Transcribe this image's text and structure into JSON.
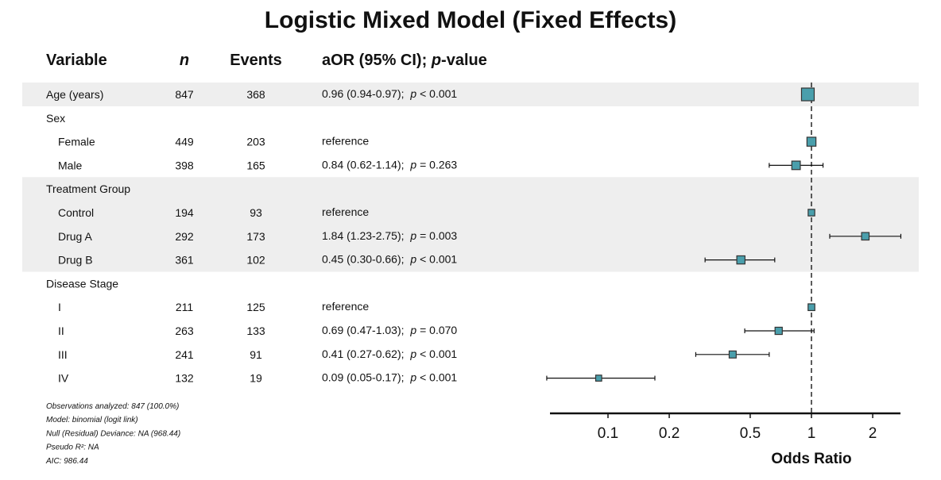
{
  "chart_data": {
    "type": "forest",
    "title": "Logistic Mixed Model (Fixed Effects)",
    "columns": {
      "variable": "Variable",
      "n": "n",
      "events": "Events",
      "estimate_prefix": "aOR (95% CI); ",
      "estimate_p": "p",
      "estimate_suffix": "-value"
    },
    "xlabel": "Odds Ratio",
    "xscale": "log",
    "xlim": [
      0.052,
      2.74
    ],
    "xticks": [
      "0.1",
      "0.2",
      "0.5",
      "1",
      "2"
    ],
    "reference_line": 1,
    "point_color": "#4a9fac",
    "band_color": "#eeeeee",
    "rows": [
      {
        "label": "Age (years)",
        "indent": false,
        "n": "847",
        "events": "368",
        "est": 0.96,
        "lo": 0.94,
        "hi": 0.97,
        "text": "0.96 (0.94-0.97);  ",
        "p": "p",
        "pval": " < 0.001",
        "shaded": true
      },
      {
        "label": "Sex",
        "indent": false,
        "header": true,
        "shaded": false
      },
      {
        "label": "Female",
        "indent": true,
        "n": "449",
        "events": "203",
        "est": 1,
        "text": "reference",
        "shaded": false
      },
      {
        "label": "Male",
        "indent": true,
        "n": "398",
        "events": "165",
        "est": 0.84,
        "lo": 0.62,
        "hi": 1.14,
        "text": "0.84 (0.62-1.14);  ",
        "p": "p",
        "pval": " = 0.263",
        "shaded": false
      },
      {
        "label": "Treatment Group",
        "indent": false,
        "header": true,
        "shaded": true
      },
      {
        "label": "Control",
        "indent": true,
        "n": "194",
        "events": "93",
        "est": 1,
        "text": "reference",
        "shaded": true
      },
      {
        "label": "Drug A",
        "indent": true,
        "n": "292",
        "events": "173",
        "est": 1.84,
        "lo": 1.23,
        "hi": 2.75,
        "text": "1.84 (1.23-2.75);  ",
        "p": "p",
        "pval": " = 0.003",
        "shaded": true
      },
      {
        "label": "Drug B",
        "indent": true,
        "n": "361",
        "events": "102",
        "est": 0.45,
        "lo": 0.3,
        "hi": 0.66,
        "text": "0.45 (0.30-0.66);  ",
        "p": "p",
        "pval": " < 0.001",
        "shaded": true
      },
      {
        "label": "Disease Stage",
        "indent": false,
        "header": true,
        "shaded": false
      },
      {
        "label": "I",
        "indent": true,
        "n": "211",
        "events": "125",
        "est": 1,
        "text": "reference",
        "shaded": false
      },
      {
        "label": "II",
        "indent": true,
        "n": "263",
        "events": "133",
        "est": 0.69,
        "lo": 0.47,
        "hi": 1.03,
        "text": "0.69 (0.47-1.03);  ",
        "p": "p",
        "pval": " = 0.070",
        "shaded": false
      },
      {
        "label": "III",
        "indent": true,
        "n": "241",
        "events": "91",
        "est": 0.41,
        "lo": 0.27,
        "hi": 0.62,
        "text": "0.41 (0.27-0.62);  ",
        "p": "p",
        "pval": " < 0.001",
        "shaded": false
      },
      {
        "label": "IV",
        "indent": true,
        "n": "132",
        "events": "19",
        "est": 0.09,
        "lo": 0.05,
        "hi": 0.17,
        "text": "0.09 (0.05-0.17);  ",
        "p": "p",
        "pval": " < 0.001",
        "shaded": false
      }
    ],
    "footnotes": [
      "Observations analyzed: 847 (100.0%)",
      "Model: binomial (logit link)",
      "Null (Residual) Deviance: NA (968.44)",
      "Pseudo R²: NA",
      "AIC: 986.44"
    ]
  }
}
